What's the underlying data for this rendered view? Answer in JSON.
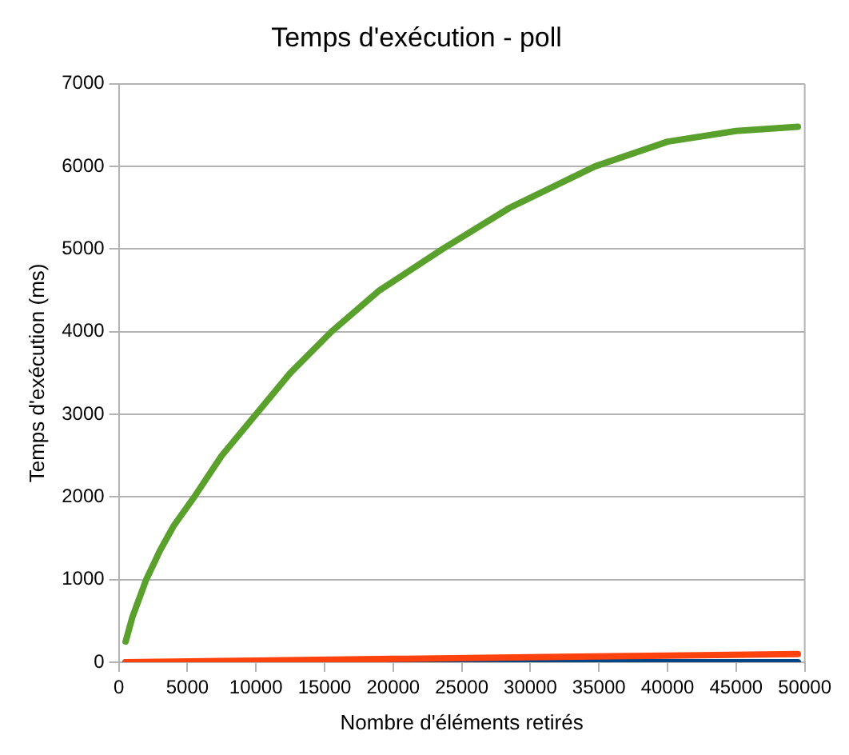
{
  "chart_data": {
    "type": "line",
    "title": "Temps d'exécution - poll",
    "xlabel": "Nombre d'éléments retirés",
    "ylabel": "Temps d'exécution (ms)",
    "xlim": [
      0,
      50000
    ],
    "xticks": [
      0,
      5000,
      10000,
      15000,
      20000,
      25000,
      30000,
      35000,
      40000,
      45000,
      50000
    ],
    "ylim": [
      0,
      7000
    ],
    "yticks": [
      0,
      1000,
      2000,
      3000,
      4000,
      5000,
      6000,
      7000
    ],
    "grid": "y",
    "legend": false,
    "marker": "none",
    "line_style": "solid",
    "series": [
      {
        "color": "#5aa02c",
        "x": [
          500,
          1000,
          2000,
          3000,
          4000,
          5500,
          7500,
          10000,
          12500,
          15500,
          19000,
          23600,
          28500,
          34700,
          40000,
          45000,
          49500
        ],
        "values": [
          250,
          550,
          1000,
          1350,
          1650,
          2000,
          2500,
          3000,
          3500,
          4000,
          4500,
          5000,
          5500,
          6000,
          6300,
          6430,
          6480
        ]
      },
      {
        "color": "#ff420e",
        "x": [
          500,
          10000,
          20000,
          30000,
          40000,
          49500
        ],
        "values": [
          0,
          20,
          40,
          60,
          80,
          100
        ]
      },
      {
        "color": "#004586",
        "x": [
          500,
          10000,
          20000,
          30000,
          40000,
          49500
        ],
        "values": [
          0,
          0,
          0,
          0,
          0,
          0
        ]
      }
    ]
  }
}
